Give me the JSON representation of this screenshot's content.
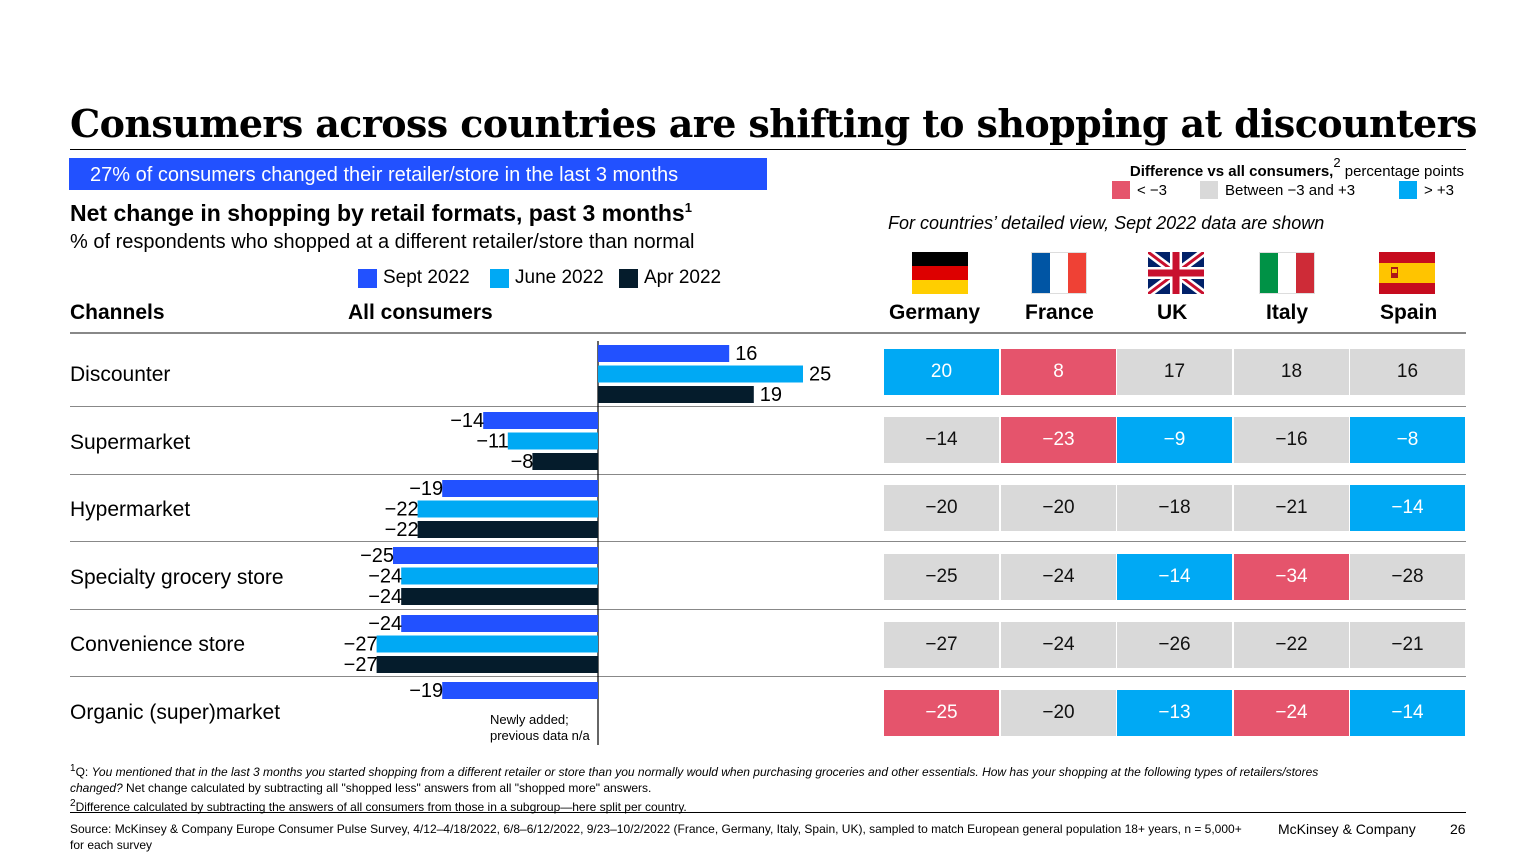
{
  "title": "Consumers across countries are shifting to shopping at discounters",
  "banner": "27% of consumers changed their retailer/store in the last 3 months",
  "subtitle": "Net change in shopping by retail formats, past 3 months",
  "subtitle_sup": "1",
  "subtitle2": "% of respondents who shopped at a different retailer/store than normal",
  "colors": {
    "sept": "#2251ff",
    "june": "#00a9f4",
    "apr": "#051c2c",
    "low": "#e5546c",
    "mid": "#d9d9d9",
    "high": "#00a9f4"
  },
  "legend": [
    {
      "label": "Sept 2022",
      "color": "#2251ff"
    },
    {
      "label": "June 2022",
      "color": "#00a9f4"
    },
    {
      "label": "Apr 2022",
      "color": "#051c2c"
    }
  ],
  "diff_legend": {
    "title_bold": "Difference vs all consumers,",
    "title_sup": "2",
    "title_rest": " percentage points",
    "items": [
      {
        "label": "< −3",
        "class": "low"
      },
      {
        "label": "Between −3 and +3",
        "class": "mid"
      },
      {
        "label": "> +3",
        "class": "high"
      }
    ]
  },
  "detail_note": "For countries’ detailed view, Sept 2022 data are shown",
  "column_headers": {
    "channels": "Channels",
    "all": "All consumers"
  },
  "countries": [
    {
      "name": "Germany",
      "flag": "germany-flag"
    },
    {
      "name": "France",
      "flag": "france-flag"
    },
    {
      "name": "UK",
      "flag": "uk-flag"
    },
    {
      "name": "Italy",
      "flag": "italy-flag"
    },
    {
      "name": "Spain",
      "flag": "spain-flag"
    }
  ],
  "chart_data": {
    "type": "bar",
    "orientation": "horizontal",
    "categories": [
      "Discounter",
      "Supermarket",
      "Hypermarket",
      "Specialty grocery store",
      "Convenience store",
      "Organic (super)market"
    ],
    "series": [
      {
        "name": "Sept 2022",
        "values": [
          16,
          -14,
          -19,
          -25,
          -24,
          -19
        ]
      },
      {
        "name": "June 2022",
        "values": [
          25,
          -11,
          -22,
          -24,
          -27,
          null
        ]
      },
      {
        "name": "Apr 2022",
        "values": [
          19,
          -8,
          -22,
          -24,
          -27,
          null
        ]
      }
    ],
    "value_labels": [
      [
        "16",
        "25",
        "19"
      ],
      [
        "−14",
        "−11",
        "−8"
      ],
      [
        "−19",
        "−22",
        "−22"
      ],
      [
        "−25",
        "−24",
        "−24"
      ],
      [
        "−24",
        "−27",
        "−27"
      ],
      [
        "−19",
        "",
        ""
      ]
    ],
    "annotation": "Newly added; previous data n/a"
  },
  "country_table": [
    {
      "values": [
        "20",
        "8",
        "17",
        "18",
        "16"
      ],
      "classes": [
        "high",
        "low",
        "mid",
        "mid",
        "mid"
      ]
    },
    {
      "values": [
        "−14",
        "−23",
        "−9",
        "−16",
        "−8"
      ],
      "classes": [
        "mid",
        "low",
        "high",
        "mid",
        "high"
      ]
    },
    {
      "values": [
        "−20",
        "−20",
        "−18",
        "−21",
        "−14"
      ],
      "classes": [
        "mid",
        "mid",
        "mid",
        "mid",
        "high"
      ]
    },
    {
      "values": [
        "−25",
        "−24",
        "−14",
        "−34",
        "−28"
      ],
      "classes": [
        "mid",
        "mid",
        "high",
        "low",
        "mid"
      ]
    },
    {
      "values": [
        "−27",
        "−24",
        "−26",
        "−22",
        "−21"
      ],
      "classes": [
        "mid",
        "mid",
        "mid",
        "mid",
        "mid"
      ]
    },
    {
      "values": [
        "−25",
        "−20",
        "−13",
        "−24",
        "−14"
      ],
      "classes": [
        "low",
        "mid",
        "high",
        "low",
        "high"
      ]
    }
  ],
  "footnotes": {
    "f1_sup": "1",
    "f1_q": "Q: ",
    "f1_italic": "You mentioned that in the last 3 months you started shopping from a different retailer or store than you normally would when purchasing groceries and other essentials. How has your shopping at the following types of retailers/stores changed?",
    "f1_rest": " Net change calculated by subtracting all \"shopped less\" answers from all \"shopped more\" answers.",
    "f2_sup": "2",
    "f2_text": "Difference calculated by subtracting the answers of all consumers from those in a subgroup—here split per country."
  },
  "source": "Source: McKinsey & Company Europe Consumer Pulse Survey, 4/12–4/18/2022, 6/8–6/12/2022, 9/23–10/2/2022 (France, Germany, Italy, Spain, UK), sampled to match European general population 18+ years, n = 5,000+ for each survey",
  "brand": "McKinsey & Company",
  "page_number": "26"
}
